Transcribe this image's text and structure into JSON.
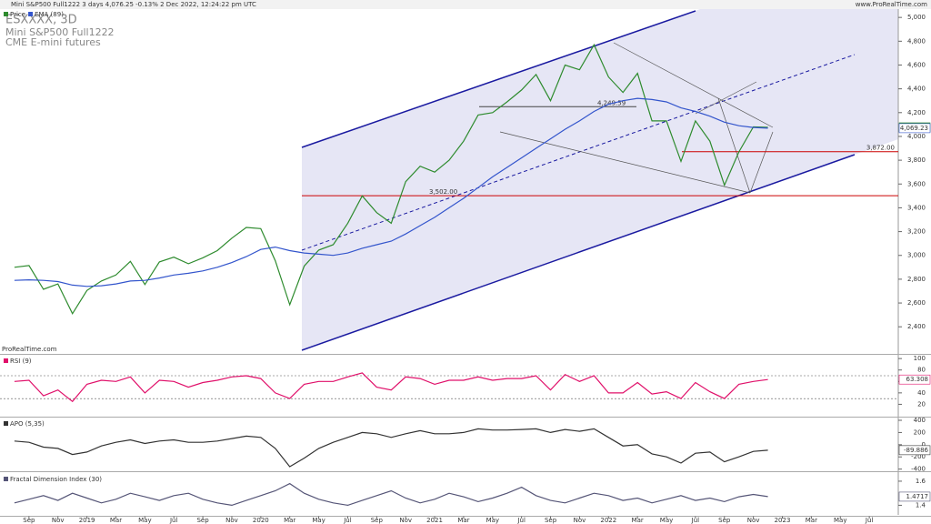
{
  "header": {
    "title": "Mini S&P500 Full1222 3 days 4,076.25 -0.13% 2 Dec 2022, 12:24:22 pm UTC",
    "site": "www.ProRealTime.com",
    "symbol": "ESXXXX, 3D",
    "name": "Mini S&P500 Full1222",
    "exchange": "CME E-mini futures",
    "credit": "ProRealTime.com"
  },
  "chart_data": [
    {
      "type": "line",
      "title": "Price",
      "xlim": [
        "2018-07",
        "2023-09"
      ],
      "ylim": [
        2180,
        5070
      ],
      "yticks": [
        {
          "value": 2400,
          "label": "2,400"
        },
        {
          "value": 2600,
          "label": "2,600"
        },
        {
          "value": 2800,
          "label": "2,800"
        },
        {
          "value": 3000,
          "label": "3,000"
        },
        {
          "value": 3200,
          "label": "3,200"
        },
        {
          "value": 3400,
          "label": "3,400"
        },
        {
          "value": 3600,
          "label": "3,600"
        },
        {
          "value": 3800,
          "label": "3,800"
        },
        {
          "value": 4000,
          "label": "4,000"
        },
        {
          "value": 4200,
          "label": "4,200"
        },
        {
          "value": 4400,
          "label": "4,400"
        },
        {
          "value": 4600,
          "label": "4,600"
        },
        {
          "value": 4800,
          "label": "4,800"
        },
        {
          "value": 5000,
          "label": "5,000"
        }
      ],
      "levels": [
        {
          "value": 3872,
          "label": "3,872.00",
          "color": "#cc0000"
        },
        {
          "value": 3502,
          "label": "3,502.00",
          "color": "#cc0000"
        },
        {
          "value": 4249.59,
          "label": "4,249.59",
          "color": "#444444"
        }
      ],
      "x": [
        "2018-08",
        "2018-09",
        "2018-10",
        "2018-11",
        "2018-12",
        "2019-01",
        "2019-02",
        "2019-03",
        "2019-04",
        "2019-05",
        "2019-06",
        "2019-07",
        "2019-08",
        "2019-09",
        "2019-10",
        "2019-11",
        "2019-12",
        "2020-01",
        "2020-02",
        "2020-03",
        "2020-04",
        "2020-05",
        "2020-06",
        "2020-07",
        "2020-08",
        "2020-09",
        "2020-10",
        "2020-11",
        "2020-12",
        "2021-01",
        "2021-02",
        "2021-03",
        "2021-04",
        "2021-05",
        "2021-06",
        "2021-07",
        "2021-08",
        "2021-09",
        "2021-10",
        "2021-11",
        "2021-12",
        "2022-01",
        "2022-02",
        "2022-03",
        "2022-04",
        "2022-05",
        "2022-06",
        "2022-07",
        "2022-08",
        "2022-09",
        "2022-10",
        "2022-11",
        "2022-12"
      ],
      "series": [
        {
          "name": "Price",
          "color": "#2e8b2e",
          "values": [
            2900,
            2915,
            2715,
            2760,
            2510,
            2705,
            2785,
            2835,
            2950,
            2755,
            2945,
            2985,
            2930,
            2980,
            3040,
            3145,
            3235,
            3225,
            2955,
            2585,
            2910,
            3045,
            3090,
            3270,
            3500,
            3360,
            3270,
            3620,
            3750,
            3700,
            3800,
            3960,
            4180,
            4200,
            4290,
            4390,
            4520,
            4300,
            4600,
            4560,
            4770,
            4500,
            4370,
            4530,
            4130,
            4130,
            3790,
            4130,
            3960,
            3590,
            3870,
            4080,
            4076.25
          ],
          "value_labels": [
            null,
            null,
            null,
            null,
            null,
            null,
            null,
            null,
            null,
            null,
            null,
            null,
            null,
            null,
            null,
            null,
            null,
            null,
            null,
            null,
            null,
            null,
            null,
            null,
            null,
            null,
            null,
            null,
            null,
            null,
            null,
            null,
            null,
            null,
            null,
            null,
            null,
            null,
            null,
            null,
            null,
            null,
            null,
            null,
            null,
            null,
            null,
            null,
            null,
            null,
            null,
            null,
            "4,076.25"
          ]
        },
        {
          "name": "EMA (89)",
          "color": "#3355cc",
          "values": [
            2790,
            2795,
            2790,
            2780,
            2750,
            2740,
            2745,
            2760,
            2785,
            2790,
            2810,
            2835,
            2850,
            2870,
            2900,
            2940,
            2990,
            3050,
            3070,
            3040,
            3020,
            3010,
            3000,
            3020,
            3060,
            3090,
            3120,
            3180,
            3250,
            3320,
            3400,
            3480,
            3570,
            3660,
            3740,
            3820,
            3900,
            3980,
            4060,
            4130,
            4210,
            4270,
            4300,
            4320,
            4310,
            4290,
            4240,
            4210,
            4170,
            4120,
            4090,
            4075,
            4069.23
          ],
          "value_labels": [
            null,
            null,
            null,
            null,
            null,
            null,
            null,
            null,
            null,
            null,
            null,
            null,
            null,
            null,
            null,
            null,
            null,
            null,
            null,
            null,
            null,
            null,
            null,
            null,
            null,
            null,
            null,
            null,
            null,
            null,
            null,
            null,
            null,
            null,
            null,
            null,
            null,
            null,
            null,
            null,
            null,
            null,
            null,
            null,
            null,
            null,
            null,
            null,
            null,
            null,
            null,
            null,
            "4,069.23"
          ]
        }
      ]
    },
    {
      "type": "line",
      "title": "RSI (9)",
      "xlim": [
        "2018-07",
        "2023-09"
      ],
      "ylim": [
        0,
        105
      ],
      "yticks": [
        100,
        80,
        60,
        40,
        20
      ],
      "levels": [
        {
          "value": 70,
          "color": "#555555"
        },
        {
          "value": 30,
          "color": "#555555"
        }
      ],
      "x": [
        "2018-08",
        "2018-09",
        "2018-10",
        "2018-11",
        "2018-12",
        "2019-01",
        "2019-02",
        "2019-03",
        "2019-04",
        "2019-05",
        "2019-06",
        "2019-07",
        "2019-08",
        "2019-09",
        "2019-10",
        "2019-11",
        "2019-12",
        "2020-01",
        "2020-02",
        "2020-03",
        "2020-04",
        "2020-05",
        "2020-06",
        "2020-07",
        "2020-08",
        "2020-09",
        "2020-10",
        "2020-11",
        "2020-12",
        "2021-01",
        "2021-02",
        "2021-03",
        "2021-04",
        "2021-05",
        "2021-06",
        "2021-07",
        "2021-08",
        "2021-09",
        "2021-10",
        "2021-11",
        "2021-12",
        "2022-01",
        "2022-02",
        "2022-03",
        "2022-04",
        "2022-05",
        "2022-06",
        "2022-07",
        "2022-08",
        "2022-09",
        "2022-10",
        "2022-11",
        "2022-12"
      ],
      "series": [
        {
          "name": "RSI (9)",
          "color": "#e0106a",
          "values": [
            60,
            62,
            35,
            45,
            25,
            55,
            62,
            60,
            68,
            40,
            62,
            60,
            50,
            58,
            62,
            68,
            70,
            65,
            40,
            30,
            55,
            60,
            60,
            68,
            75,
            50,
            45,
            68,
            65,
            55,
            62,
            62,
            68,
            62,
            65,
            65,
            70,
            45,
            72,
            60,
            70,
            40,
            40,
            58,
            38,
            42,
            30,
            58,
            42,
            30,
            55,
            60,
            63.308
          ]
        }
      ]
    },
    {
      "type": "line",
      "title": "APO (5,35)",
      "xlim": [
        "2018-07",
        "2023-09"
      ],
      "ylim": [
        -420,
        430
      ],
      "yticks": [
        400,
        200,
        0,
        -200,
        -400
      ],
      "x": [
        "2018-08",
        "2018-09",
        "2018-10",
        "2018-11",
        "2018-12",
        "2019-01",
        "2019-02",
        "2019-03",
        "2019-04",
        "2019-05",
        "2019-06",
        "2019-07",
        "2019-08",
        "2019-09",
        "2019-10",
        "2019-11",
        "2019-12",
        "2020-01",
        "2020-02",
        "2020-03",
        "2020-04",
        "2020-05",
        "2020-06",
        "2020-07",
        "2020-08",
        "2020-09",
        "2020-10",
        "2020-11",
        "2020-12",
        "2021-01",
        "2021-02",
        "2021-03",
        "2021-04",
        "2021-05",
        "2021-06",
        "2021-07",
        "2021-08",
        "2021-09",
        "2021-10",
        "2021-11",
        "2021-12",
        "2022-01",
        "2022-02",
        "2022-03",
        "2022-04",
        "2022-05",
        "2022-06",
        "2022-07",
        "2022-08",
        "2022-09",
        "2022-10",
        "2022-11",
        "2022-12"
      ],
      "series": [
        {
          "name": "APO (5,35)",
          "color": "#333333",
          "values": [
            60,
            40,
            -40,
            -60,
            -160,
            -120,
            -20,
            40,
            80,
            20,
            60,
            80,
            40,
            40,
            60,
            100,
            140,
            120,
            -60,
            -360,
            -220,
            -60,
            40,
            120,
            200,
            180,
            120,
            180,
            230,
            180,
            180,
            200,
            260,
            240,
            240,
            250,
            260,
            200,
            250,
            220,
            260,
            120,
            -20,
            0,
            -150,
            -200,
            -300,
            -140,
            -120,
            -280,
            -200,
            -110,
            -89.886
          ]
        }
      ]
    },
    {
      "type": "line",
      "title": "Fractal Dimension Index (30)",
      "xlim": [
        "2018-07",
        "2023-09"
      ],
      "ylim": [
        1.32,
        1.66
      ],
      "yticks": [
        1.6,
        1.4
      ],
      "xticks": [
        {
          "value": "2018-09",
          "label": "Sep"
        },
        {
          "value": "2018-11",
          "label": "Nov"
        },
        {
          "value": "2019-01",
          "label": "2019"
        },
        {
          "value": "2019-03",
          "label": "Mar"
        },
        {
          "value": "2019-05",
          "label": "May"
        },
        {
          "value": "2019-07",
          "label": "Jul"
        },
        {
          "value": "2019-09",
          "label": "Sep"
        },
        {
          "value": "2019-11",
          "label": "Nov"
        },
        {
          "value": "2020-01",
          "label": "2020"
        },
        {
          "value": "2020-03",
          "label": "Mar"
        },
        {
          "value": "2020-05",
          "label": "May"
        },
        {
          "value": "2020-07",
          "label": "Jul"
        },
        {
          "value": "2020-09",
          "label": "Sep"
        },
        {
          "value": "2020-11",
          "label": "Nov"
        },
        {
          "value": "2021-01",
          "label": "2021"
        },
        {
          "value": "2021-03",
          "label": "Mar"
        },
        {
          "value": "2021-05",
          "label": "May"
        },
        {
          "value": "2021-07",
          "label": "Jul"
        },
        {
          "value": "2021-09",
          "label": "Sep"
        },
        {
          "value": "2021-11",
          "label": "Nov"
        },
        {
          "value": "2022-01",
          "label": "2022"
        },
        {
          "value": "2022-03",
          "label": "Mar"
        },
        {
          "value": "2022-05",
          "label": "May"
        },
        {
          "value": "2022-07",
          "label": "Jul"
        },
        {
          "value": "2022-09",
          "label": "Sep"
        },
        {
          "value": "2022-11",
          "label": "Nov"
        },
        {
          "value": "2023-01",
          "label": "2023"
        },
        {
          "value": "2023-03",
          "label": "Mar"
        },
        {
          "value": "2023-05",
          "label": "May"
        },
        {
          "value": "2023-07",
          "label": "Jul"
        }
      ],
      "x": [
        "2018-08",
        "2018-09",
        "2018-10",
        "2018-11",
        "2018-12",
        "2019-01",
        "2019-02",
        "2019-03",
        "2019-04",
        "2019-05",
        "2019-06",
        "2019-07",
        "2019-08",
        "2019-09",
        "2019-10",
        "2019-11",
        "2019-12",
        "2020-01",
        "2020-02",
        "2020-03",
        "2020-04",
        "2020-05",
        "2020-06",
        "2020-07",
        "2020-08",
        "2020-09",
        "2020-10",
        "2020-11",
        "2020-12",
        "2021-01",
        "2021-02",
        "2021-03",
        "2021-04",
        "2021-05",
        "2021-06",
        "2021-07",
        "2021-08",
        "2021-09",
        "2021-10",
        "2021-11",
        "2021-12",
        "2022-01",
        "2022-02",
        "2022-03",
        "2022-04",
        "2022-05",
        "2022-06",
        "2022-07",
        "2022-08",
        "2022-09",
        "2022-10",
        "2022-11",
        "2022-12"
      ],
      "series": [
        {
          "name": "Fractal Dimension Index (30)",
          "color": "#555577",
          "values": [
            1.42,
            1.45,
            1.48,
            1.44,
            1.5,
            1.46,
            1.42,
            1.45,
            1.5,
            1.47,
            1.44,
            1.48,
            1.5,
            1.45,
            1.42,
            1.4,
            1.44,
            1.48,
            1.52,
            1.58,
            1.5,
            1.45,
            1.42,
            1.4,
            1.44,
            1.48,
            1.52,
            1.46,
            1.42,
            1.45,
            1.5,
            1.47,
            1.43,
            1.46,
            1.5,
            1.55,
            1.48,
            1.44,
            1.42,
            1.46,
            1.5,
            1.48,
            1.44,
            1.46,
            1.42,
            1.45,
            1.48,
            1.44,
            1.46,
            1.43,
            1.47,
            1.49,
            1.4717
          ]
        }
      ]
    }
  ]
}
